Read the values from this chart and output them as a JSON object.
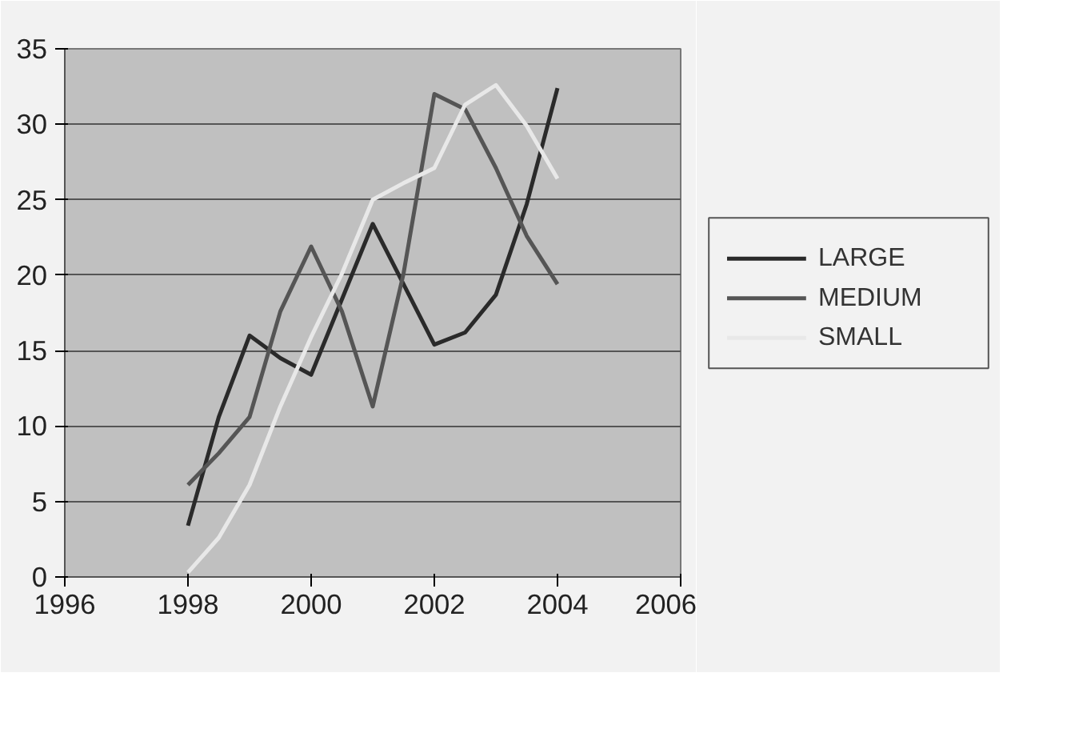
{
  "chart_data": {
    "type": "line",
    "x": [
      1998,
      1998.5,
      1999,
      1999.5,
      2000,
      2000.5,
      2001,
      2001.5,
      2002,
      2002.5,
      2003,
      2003.5,
      2004
    ],
    "series": [
      {
        "name": "LARGE",
        "color": "#2a2a2a",
        "values": [
          3.4,
          10.6,
          16,
          14.5,
          13.4,
          18.4,
          23.4,
          19.4,
          15.4,
          16.2,
          18.7,
          24.7,
          32.4
        ]
      },
      {
        "name": "MEDIUM",
        "color": "#555555",
        "values": [
          6.1,
          8.2,
          10.6,
          17.6,
          21.9,
          17.6,
          11.3,
          20.1,
          32,
          31,
          27.1,
          22.6,
          19.4
        ]
      },
      {
        "name": "SMALL",
        "color": "#e8e8e8",
        "values": [
          0.3,
          2.6,
          6.1,
          11.3,
          15.9,
          20.1,
          25,
          26.1,
          27.1,
          31.3,
          32.6,
          29.9,
          26.4
        ]
      }
    ],
    "xlim": [
      1996,
      2006
    ],
    "xticks": [
      1996,
      1998,
      2000,
      2002,
      2004,
      2006
    ],
    "ylim": [
      0,
      35
    ],
    "yticks": [
      0,
      5,
      10,
      15,
      20,
      25,
      30,
      35
    ],
    "grid": "y",
    "legend": "right",
    "marker": "none",
    "line_style": "solid"
  }
}
